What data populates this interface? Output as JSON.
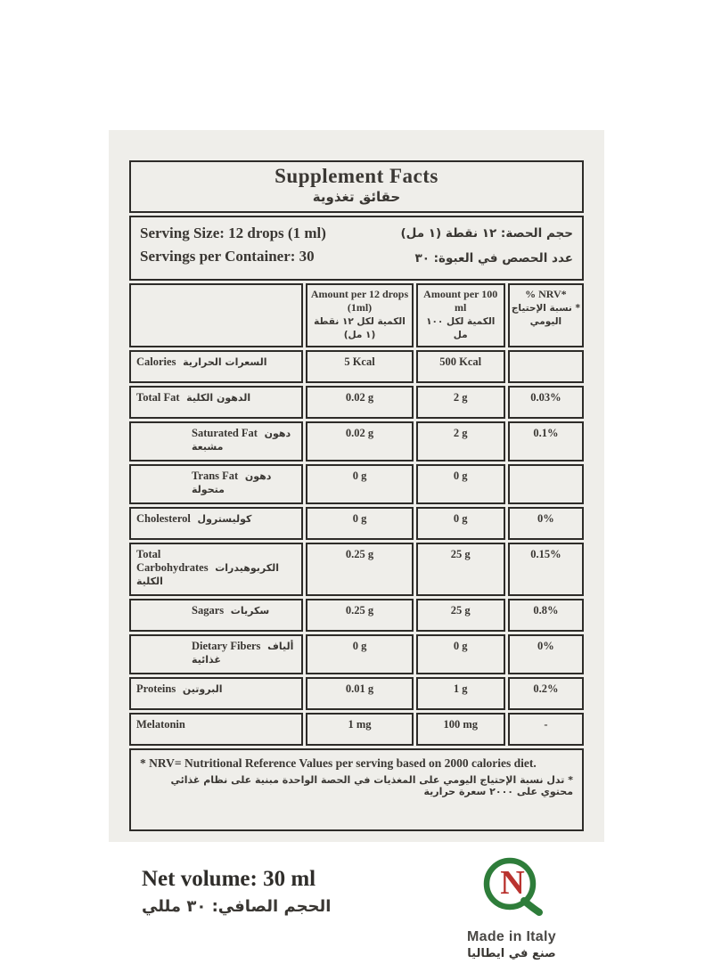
{
  "colors": {
    "page_bg": "#ffffff",
    "panel_bg": "#efeeea",
    "border": "#2e2c29",
    "text": "#3a3733",
    "logo_green": "#2e7d3a",
    "logo_red": "#b9332f"
  },
  "title": {
    "en": "Supplement Facts",
    "ar": "حقائق تغذوية"
  },
  "serving": {
    "size_en": "Serving Size: 12 drops (1 ml)",
    "container_en": "Servings per Container: 30",
    "size_ar": "حجم الحصة: ١٢ نقطة (١ مل)",
    "container_ar": "عدد الحصص في العبوة: ٣٠"
  },
  "table": {
    "headers": [
      {
        "en": "",
        "ar": ""
      },
      {
        "en": "Amount per 12 drops (1ml)",
        "ar": "الكمية لكل ١٢ نقطة (١ مل)"
      },
      {
        "en": "Amount per 100 ml",
        "ar": "الكمية لكل ١٠٠ مل"
      },
      {
        "en": "% NRV*",
        "ar": "* نسبة الإحتياج اليومي"
      }
    ],
    "rows": [
      {
        "label_en": "Calories",
        "label_ar": "السعرات الحرارية",
        "indent": false,
        "per12": "5 Kcal",
        "per100": "500 Kcal",
        "nrv": ""
      },
      {
        "label_en": "Total Fat",
        "label_ar": "الدهون الكلية",
        "indent": false,
        "per12": "0.02 g",
        "per100": "2 g",
        "nrv": "0.03%"
      },
      {
        "label_en": "Saturated Fat",
        "label_ar": "دهون مشبعة",
        "indent": true,
        "per12": "0.02 g",
        "per100": "2 g",
        "nrv": "0.1%"
      },
      {
        "label_en": "Trans Fat",
        "label_ar": "دهون متحولة",
        "indent": true,
        "per12": "0 g",
        "per100": "0 g",
        "nrv": ""
      },
      {
        "label_en": "Cholesterol",
        "label_ar": "كوليسترول",
        "indent": false,
        "per12": "0 g",
        "per100": "0 g",
        "nrv": "0%"
      },
      {
        "label_en": "Total Carbohydrates",
        "label_ar": "الكربوهيدرات الكلية",
        "indent": false,
        "per12": "0.25 g",
        "per100": "25 g",
        "nrv": "0.15%"
      },
      {
        "label_en": "Sagars",
        "label_ar": "سكريات",
        "indent": true,
        "per12": "0.25 g",
        "per100": "25 g",
        "nrv": "0.8%"
      },
      {
        "label_en": "Dietary Fibers",
        "label_ar": "ألياف غذائية",
        "indent": true,
        "per12": "0 g",
        "per100": "0 g",
        "nrv": "0%"
      },
      {
        "label_en": "Proteins",
        "label_ar": "البروتين",
        "indent": false,
        "per12": "0.01 g",
        "per100": "1 g",
        "nrv": "0.2%"
      },
      {
        "label_en": "Melatonin",
        "label_ar": "",
        "indent": false,
        "per12": "1 mg",
        "per100": "100 mg",
        "nrv": "-"
      }
    ]
  },
  "footnote": {
    "en": "* NRV= Nutritional Reference Values per serving based on 2000 calories diet.",
    "ar": "* تدل نسبة الإحتياج اليومي على المغذيات في الحصة الواحدة مبنية على نظام غذائي محتوي على ٢٠٠٠ سعرة حرارية"
  },
  "bottom": {
    "net_en": "Net volume: 30 ml",
    "net_ar": "الحجم الصافي: ٣٠ مللي",
    "made_en": "Made in Italy",
    "made_ar": "صنع في ايطاليا",
    "logo": {
      "n_letter": "N"
    }
  }
}
